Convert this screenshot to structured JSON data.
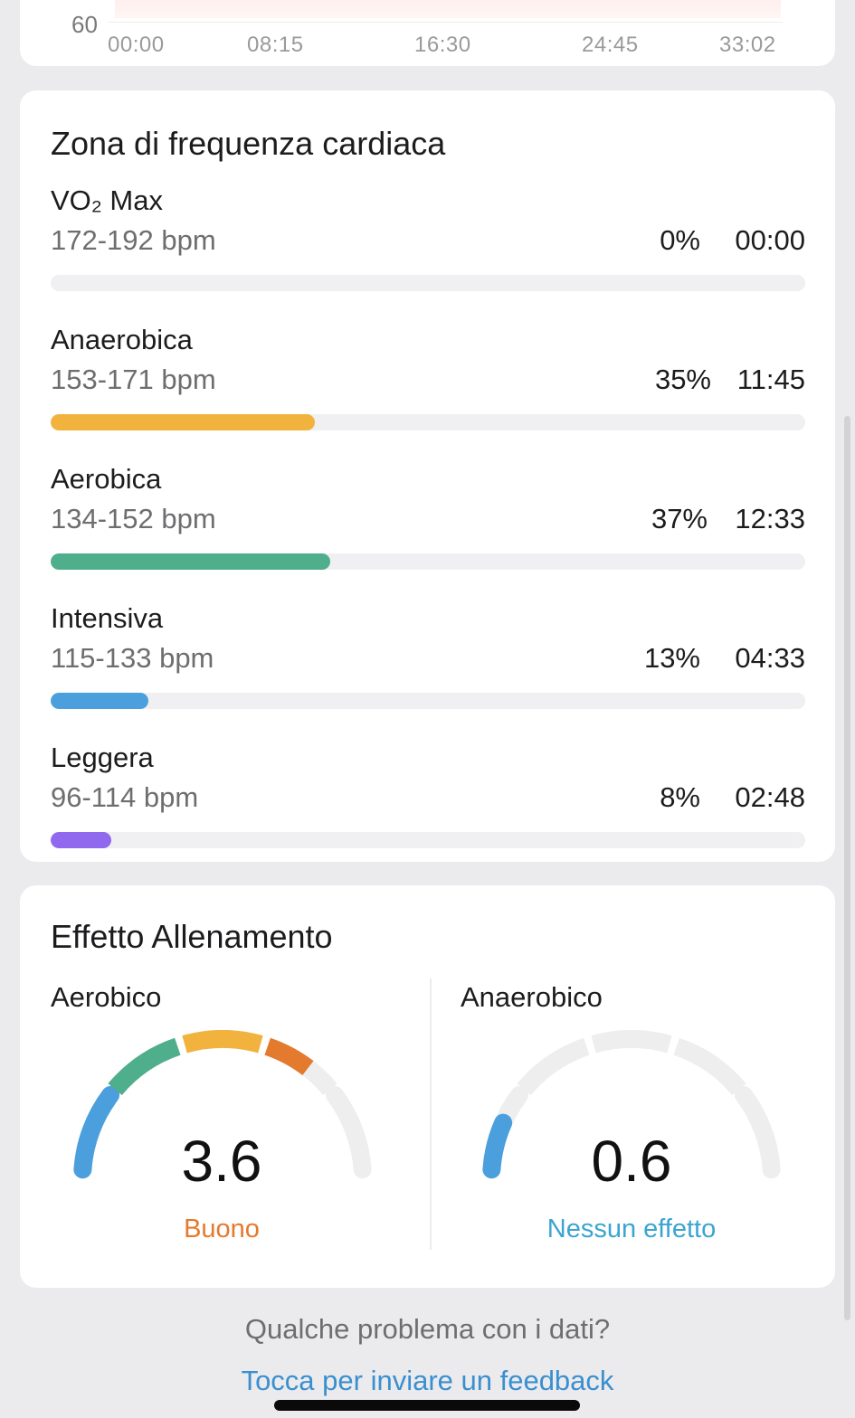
{
  "hr_chart": {
    "y_tick": "60",
    "x_ticks": [
      "00:00",
      "08:15",
      "16:30",
      "24:45",
      "33:02"
    ]
  },
  "zones": {
    "title": "Zona di frequenza cardiaca",
    "items": [
      {
        "name": "VO₂ Max",
        "range": "172-192 bpm",
        "percent": "0%",
        "time": "00:00",
        "fraction": 0,
        "color": "#e25a4a"
      },
      {
        "name": "Anaerobica",
        "range": "153-171 bpm",
        "percent": "35%",
        "time": "11:45",
        "fraction": 0.35,
        "color": "#f1b33e"
      },
      {
        "name": "Aerobica",
        "range": "134-152 bpm",
        "percent": "37%",
        "time": "12:33",
        "fraction": 0.37,
        "color": "#4fae8b"
      },
      {
        "name": "Intensiva",
        "range": "115-133 bpm",
        "percent": "13%",
        "time": "04:33",
        "fraction": 0.13,
        "color": "#4a9fdc"
      },
      {
        "name": "Leggera",
        "range": "96-114 bpm",
        "percent": "8%",
        "time": "02:48",
        "fraction": 0.08,
        "color": "#9069ef"
      }
    ]
  },
  "effect": {
    "title": "Effetto Allenamento",
    "aerobic": {
      "label": "Aerobico",
      "value": "3.6",
      "status": "Buono",
      "status_color": "#e47a2e",
      "level": 3.6,
      "max": 5
    },
    "anaerobic": {
      "label": "Anaerobico",
      "value": "0.6",
      "status": "Nessun effetto",
      "status_color": "#3ba4d2",
      "level": 0.6,
      "max": 5
    },
    "segment_colors": [
      "#4a9fdc",
      "#4fae8b",
      "#f1b33e",
      "#e47a2e",
      "#eeeeef"
    ],
    "empty_color": "#eeeeef"
  },
  "footer": {
    "question": "Qualche problema con i dati?",
    "link": "Tocca per inviare un feedback"
  }
}
